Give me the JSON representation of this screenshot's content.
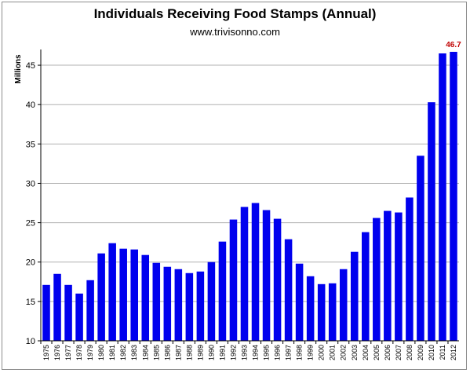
{
  "chart_data": {
    "type": "bar",
    "title": "Individuals Receiving Food Stamps (Annual)",
    "subtitle": "www.trivisonno.com",
    "xlabel": "",
    "ylabel": "Millions",
    "ylim": [
      10,
      47
    ],
    "yticks": [
      10,
      15,
      20,
      25,
      30,
      35,
      40,
      45
    ],
    "grid": "horizontal",
    "bar_color": "#0000ee",
    "annotation_color": "#c00000",
    "categories": [
      "1975",
      "1976",
      "1977",
      "1978",
      "1979",
      "1980",
      "1981",
      "1982",
      "1983",
      "1984",
      "1985",
      "1986",
      "1987",
      "1988",
      "1989",
      "1990",
      "1991",
      "1992",
      "1993",
      "1994",
      "1995",
      "1996",
      "1997",
      "1998",
      "1999",
      "2000",
      "2001",
      "2002",
      "2003",
      "2004",
      "2005",
      "2006",
      "2007",
      "2008",
      "2009",
      "2010",
      "2011",
      "2012"
    ],
    "values": [
      17.1,
      18.5,
      17.1,
      16.0,
      17.7,
      21.1,
      22.4,
      21.7,
      21.6,
      20.9,
      19.9,
      19.4,
      19.1,
      18.6,
      18.8,
      20.0,
      22.6,
      25.4,
      27.0,
      27.5,
      26.6,
      25.5,
      22.9,
      19.8,
      18.2,
      17.2,
      17.3,
      19.1,
      21.3,
      23.8,
      25.6,
      26.5,
      26.3,
      28.2,
      33.5,
      40.3,
      46.5,
      46.7
    ],
    "annotations": [
      {
        "category": "2012",
        "text": "46.7"
      }
    ]
  }
}
